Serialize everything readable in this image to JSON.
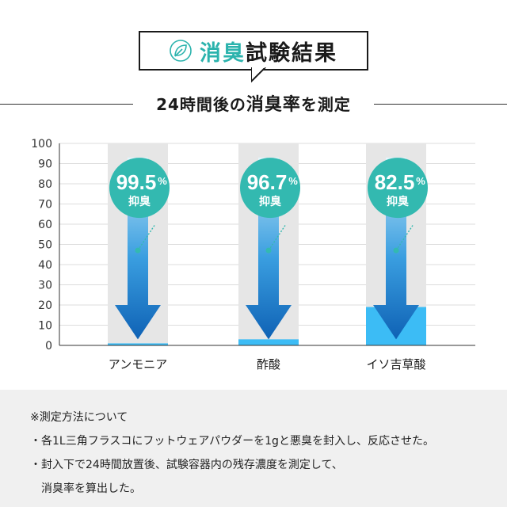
{
  "header": {
    "title_accent": "消臭",
    "title_rest": "試験結果",
    "subtitle_prefix": "24時間後の",
    "subtitle_emph": "消臭率",
    "subtitle_suffix": "を測定",
    "icon": "leaf-icon",
    "accent_color": "#2bb3ad"
  },
  "chart_data": {
    "type": "bar",
    "categories": [
      "アンモニア",
      "酢酸",
      "イソ吉草酸"
    ],
    "values": [
      1,
      3,
      19
    ],
    "reduction_percent": [
      99.5,
      96.7,
      82.5
    ],
    "badge_labels": [
      "99.5",
      "96.7",
      "82.5"
    ],
    "badge_unit": "%",
    "badge_caption": "抑臭",
    "ylim": [
      0,
      100
    ],
    "yticks": [
      "0",
      "10",
      "20",
      "30",
      "40",
      "50",
      "60",
      "70",
      "80",
      "90",
      "100"
    ],
    "grid": true,
    "colors": {
      "bar": "#3cbcf5",
      "track": "#e6e6e6",
      "badge": "#33b9b0",
      "arrow_top": "#bfe6f7",
      "arrow_bottom": "#0f62b5"
    }
  },
  "notes": {
    "heading": "※測定方法について",
    "lines": [
      "・各1L三角フラスコにフットウェアパウダーを1gと悪臭を封入し、反応させた。",
      "・封入下で24時間放置後、試験容器内の残存濃度を測定して、",
      "　消臭率を算出した。"
    ]
  }
}
